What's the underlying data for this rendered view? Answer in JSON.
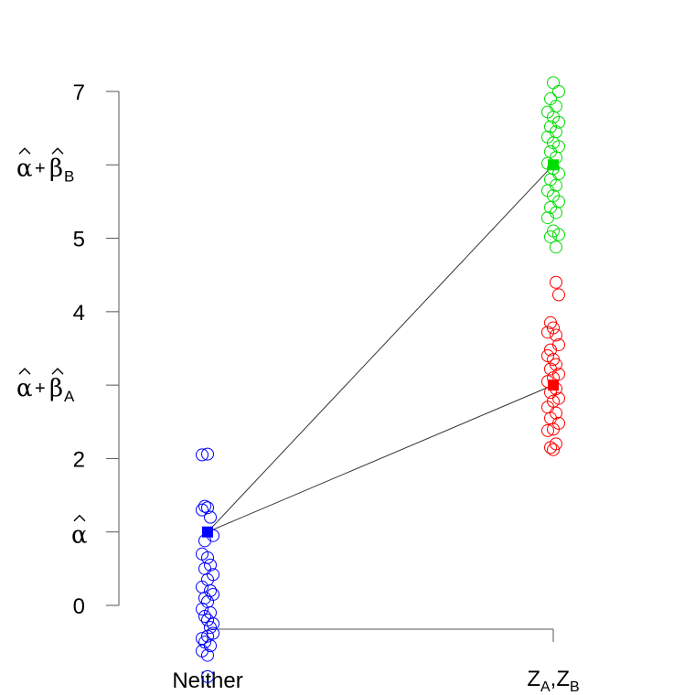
{
  "chart_data": {
    "type": "scatter",
    "title": "",
    "xlabel": "",
    "ylabel": "",
    "ylim": [
      0,
      7
    ],
    "categories": [
      "Neither",
      "Z_A,Z_B"
    ],
    "x_labels": [
      {
        "main": "Neither"
      },
      {
        "parts": [
          {
            "t": "Z",
            "sub": false
          },
          {
            "t": "A",
            "sub": true
          },
          {
            "t": ",Z",
            "sub": false
          },
          {
            "t": "B",
            "sub": true
          }
        ]
      }
    ],
    "y_ticks": [
      {
        "value": 0,
        "label": "0"
      },
      {
        "value": 2,
        "label": "2"
      },
      {
        "value": 4,
        "label": "4"
      },
      {
        "value": 5,
        "label": "5"
      },
      {
        "value": 7,
        "label": "7"
      }
    ],
    "y_param_ticks": [
      {
        "value": 1,
        "parts": [
          {
            "t": "α",
            "hat": true
          }
        ]
      },
      {
        "value": 3,
        "parts": [
          {
            "t": "α",
            "hat": true
          },
          {
            "t": "+",
            "plus": true
          },
          {
            "t": "β",
            "hat": true
          },
          {
            "t": "A",
            "sub": true
          }
        ]
      },
      {
        "value": 6,
        "parts": [
          {
            "t": "α",
            "hat": true
          },
          {
            "t": "+",
            "plus": true
          },
          {
            "t": "β",
            "hat": true
          },
          {
            "t": "B",
            "sub": true
          }
        ]
      }
    ],
    "series": [
      {
        "color": "#0000ff",
        "category": 0,
        "mean": 1.0,
        "points": [
          {
            "jitter": -0.02,
            "y": 2.05
          },
          {
            "jitter": 0.0,
            "y": 2.06
          },
          {
            "jitter": -0.01,
            "y": 1.35
          },
          {
            "jitter": 0.0,
            "y": 1.33
          },
          {
            "jitter": -0.02,
            "y": 1.3
          },
          {
            "jitter": 0.01,
            "y": 1.2
          },
          {
            "jitter": 0.02,
            "y": 0.95
          },
          {
            "jitter": -0.01,
            "y": 0.88
          },
          {
            "jitter": -0.02,
            "y": 0.7
          },
          {
            "jitter": 0.0,
            "y": 0.65
          },
          {
            "jitter": 0.01,
            "y": 0.55
          },
          {
            "jitter": -0.01,
            "y": 0.5
          },
          {
            "jitter": 0.02,
            "y": 0.42
          },
          {
            "jitter": 0.0,
            "y": 0.35
          },
          {
            "jitter": -0.02,
            "y": 0.25
          },
          {
            "jitter": 0.01,
            "y": 0.2
          },
          {
            "jitter": 0.02,
            "y": 0.15
          },
          {
            "jitter": -0.01,
            "y": 0.1
          },
          {
            "jitter": 0.0,
            "y": 0.05
          },
          {
            "jitter": -0.02,
            "y": -0.05
          },
          {
            "jitter": 0.01,
            "y": -0.1
          },
          {
            "jitter": -0.01,
            "y": -0.15
          },
          {
            "jitter": 0.0,
            "y": -0.2
          },
          {
            "jitter": 0.02,
            "y": -0.25
          },
          {
            "jitter": 0.01,
            "y": -0.3
          },
          {
            "jitter": 0.02,
            "y": -0.38
          },
          {
            "jitter": 0.0,
            "y": -0.42
          },
          {
            "jitter": -0.02,
            "y": -0.45
          },
          {
            "jitter": -0.01,
            "y": -0.5
          },
          {
            "jitter": 0.01,
            "y": -0.55
          },
          {
            "jitter": -0.02,
            "y": -0.62
          },
          {
            "jitter": 0.0,
            "y": -0.68
          },
          {
            "jitter": 0.0,
            "y": -0.97
          }
        ]
      },
      {
        "color": "#ff0000",
        "category": 1,
        "mean": 3.0,
        "points": [
          {
            "jitter": 0.01,
            "y": 4.4
          },
          {
            "jitter": 0.02,
            "y": 4.23
          },
          {
            "jitter": -0.01,
            "y": 3.85
          },
          {
            "jitter": 0.0,
            "y": 3.78
          },
          {
            "jitter": -0.02,
            "y": 3.72
          },
          {
            "jitter": 0.01,
            "y": 3.68
          },
          {
            "jitter": 0.02,
            "y": 3.55
          },
          {
            "jitter": -0.01,
            "y": 3.48
          },
          {
            "jitter": -0.02,
            "y": 3.4
          },
          {
            "jitter": 0.0,
            "y": 3.35
          },
          {
            "jitter": 0.01,
            "y": 3.28
          },
          {
            "jitter": -0.01,
            "y": 3.22
          },
          {
            "jitter": 0.02,
            "y": 3.15
          },
          {
            "jitter": 0.0,
            "y": 3.1
          },
          {
            "jitter": -0.02,
            "y": 3.05
          },
          {
            "jitter": 0.01,
            "y": 2.95
          },
          {
            "jitter": -0.01,
            "y": 2.9
          },
          {
            "jitter": 0.02,
            "y": 2.82
          },
          {
            "jitter": 0.0,
            "y": 2.78
          },
          {
            "jitter": -0.02,
            "y": 2.7
          },
          {
            "jitter": 0.01,
            "y": 2.62
          },
          {
            "jitter": -0.01,
            "y": 2.55
          },
          {
            "jitter": 0.02,
            "y": 2.48
          },
          {
            "jitter": 0.0,
            "y": 2.4
          },
          {
            "jitter": -0.02,
            "y": 2.38
          },
          {
            "jitter": 0.01,
            "y": 2.2
          },
          {
            "jitter": -0.01,
            "y": 2.15
          },
          {
            "jitter": 0.0,
            "y": 2.12
          }
        ]
      },
      {
        "color": "#00dd00",
        "category": 1,
        "mean": 6.0,
        "points": [
          {
            "jitter": 0.0,
            "y": 7.12
          },
          {
            "jitter": 0.02,
            "y": 7.0
          },
          {
            "jitter": -0.01,
            "y": 6.9
          },
          {
            "jitter": 0.01,
            "y": 6.8
          },
          {
            "jitter": -0.02,
            "y": 6.72
          },
          {
            "jitter": 0.0,
            "y": 6.65
          },
          {
            "jitter": 0.02,
            "y": 6.58
          },
          {
            "jitter": -0.01,
            "y": 6.52
          },
          {
            "jitter": 0.01,
            "y": 6.45
          },
          {
            "jitter": -0.02,
            "y": 6.38
          },
          {
            "jitter": 0.0,
            "y": 6.3
          },
          {
            "jitter": 0.02,
            "y": 6.25
          },
          {
            "jitter": -0.01,
            "y": 6.18
          },
          {
            "jitter": 0.01,
            "y": 6.1
          },
          {
            "jitter": -0.02,
            "y": 6.02
          },
          {
            "jitter": 0.0,
            "y": 5.95
          },
          {
            "jitter": 0.02,
            "y": 5.88
          },
          {
            "jitter": -0.01,
            "y": 5.8
          },
          {
            "jitter": 0.01,
            "y": 5.72
          },
          {
            "jitter": -0.02,
            "y": 5.65
          },
          {
            "jitter": 0.0,
            "y": 5.58
          },
          {
            "jitter": 0.02,
            "y": 5.5
          },
          {
            "jitter": -0.01,
            "y": 5.42
          },
          {
            "jitter": 0.01,
            "y": 5.35
          },
          {
            "jitter": -0.02,
            "y": 5.28
          },
          {
            "jitter": 0.0,
            "y": 5.1
          },
          {
            "jitter": 0.02,
            "y": 5.05
          },
          {
            "jitter": -0.01,
            "y": 5.02
          },
          {
            "jitter": 0.01,
            "y": 4.88
          }
        ]
      }
    ],
    "lines": [
      {
        "from_category": 0,
        "from_y": 1.0,
        "to_category": 1,
        "to_y": 3.0,
        "color": "#333333"
      },
      {
        "from_category": 0,
        "from_y": 1.0,
        "to_category": 1,
        "to_y": 6.0,
        "color": "#333333"
      }
    ],
    "grid": false,
    "legend": "none"
  }
}
